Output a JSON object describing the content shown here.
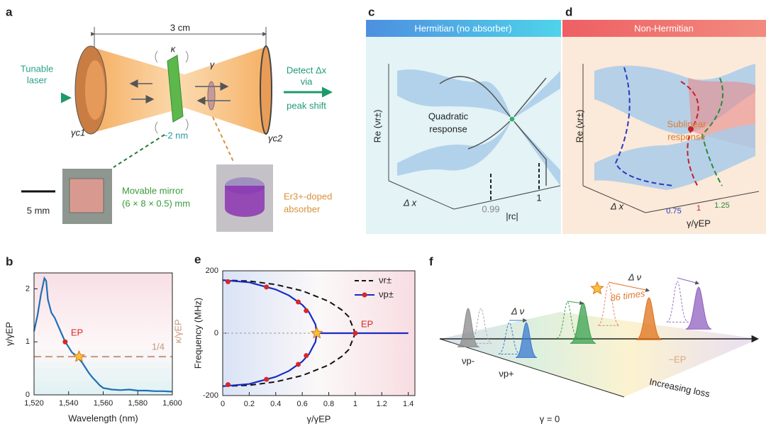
{
  "panels": {
    "a": {
      "letter": "a",
      "distance": "3 cm",
      "source": [
        "Tunable",
        "laser"
      ],
      "kappa": "κ",
      "gamma": "γ",
      "detect": [
        "Detect Δx",
        "via",
        "peak shift"
      ],
      "gamma_c1": "γc1",
      "gamma_c2": "γc2",
      "gap": "~2 nm",
      "scale": "5 mm",
      "mirror": [
        "Movable mirror",
        "(6 × 8 × 0.5) mm"
      ],
      "absorber": [
        "Er3+-doped",
        "absorber"
      ]
    },
    "c": {
      "letter": "c",
      "header": "Hermitian (no absorber)",
      "annotation": [
        "Quadratic",
        "response"
      ],
      "ylabel": "Re (νr±)",
      "axis_depth": "Δ x",
      "ticks": [
        "0.99",
        "1"
      ],
      "xlabel": "|rc|"
    },
    "d": {
      "letter": "d",
      "header": "Non-Hermitian",
      "annotation": [
        "Sublinear",
        "response"
      ],
      "ylabel": "Re (νr±)",
      "axis_depth": "Δ x",
      "ticks": [
        "0.75",
        "1",
        "1.25"
      ],
      "xlabel": "γ/γEP"
    },
    "f": {
      "letter": "f",
      "shift_small": "Δ ν",
      "shift_large": "Δ ν",
      "ratio": "86 times",
      "minus": "νp-",
      "plus": "νp+",
      "origin": "γ = 0",
      "axis": "Increasing loss",
      "ep": "~EP"
    }
  },
  "chart_data": [
    {
      "type": "line",
      "panel_label": "b",
      "xlabel": "Wavelength (nm)",
      "ylabel": "γ/γEP",
      "right_label": "κ/γEP",
      "xlim": [
        1520,
        1600
      ],
      "xticks": [
        {
          "value": 1520,
          "label": "1,520"
        },
        {
          "value": 1540,
          "label": "1,540"
        },
        {
          "value": 1560,
          "label": "1,560"
        },
        {
          "value": 1580,
          "label": "1,580"
        },
        {
          "value": 1600,
          "label": "1,600"
        }
      ],
      "ylim": [
        0,
        2.3
      ],
      "yticks": [
        0,
        1,
        2
      ],
      "series": [
        {
          "color": "#1f6fb5",
          "x": [
            1520,
            1522,
            1524,
            1526,
            1527,
            1528,
            1530,
            1532,
            1534,
            1536,
            1538,
            1540,
            1542,
            1544,
            1546,
            1548,
            1550,
            1552,
            1554,
            1556,
            1558,
            1560,
            1565,
            1570,
            1575,
            1580,
            1585,
            1590,
            1595,
            1600
          ],
          "values": [
            1.2,
            1.5,
            1.9,
            2.2,
            2.15,
            1.8,
            1.55,
            1.45,
            1.3,
            1.15,
            1.0,
            0.9,
            0.8,
            0.75,
            0.68,
            0.6,
            0.5,
            0.4,
            0.32,
            0.25,
            0.18,
            0.13,
            0.1,
            0.09,
            0.1,
            0.08,
            0.08,
            0.07,
            0.07,
            0.06
          ]
        }
      ],
      "reference_line": {
        "value": 0.72,
        "label": "1/4",
        "color": "#c8967a"
      },
      "ep_point": {
        "x": 1538,
        "y": 1.0,
        "label": "EP"
      },
      "star": {
        "x": 1546,
        "y": 0.72
      }
    },
    {
      "type": "line",
      "panel_label": "e",
      "xlabel": "γ/γEP",
      "ylabel": "Frequency (MHz)",
      "xlim": [
        0,
        1.45
      ],
      "xticks": [
        0,
        0.2,
        0.4,
        0.6,
        0.8,
        1,
        1.2,
        1.4
      ],
      "ylim": [
        -200,
        200
      ],
      "yticks": [
        -200,
        0,
        200
      ],
      "legend": "upper right",
      "series": [
        {
          "name": "νr±",
          "color": "#111111",
          "dash": true,
          "x": [
            0,
            0.2,
            0.4,
            0.6,
            0.8,
            0.9,
            0.95,
            1.0,
            null,
            0,
            0.2,
            0.4,
            0.6,
            0.8,
            0.9,
            0.95,
            1.0
          ],
          "values": [
            170,
            167,
            156,
            136,
            102,
            74,
            53,
            0,
            null,
            -170,
            -167,
            -156,
            -136,
            -102,
            -74,
            -53,
            0
          ]
        },
        {
          "name": "νp±",
          "color": "#1a2bc4",
          "x": [
            0,
            0.2,
            0.4,
            0.5,
            0.6,
            0.65,
            0.7,
            0.71,
            1.4,
            null,
            0,
            0.2,
            0.4,
            0.5,
            0.6,
            0.65,
            0.7,
            0.71
          ],
          "values": [
            170,
            163,
            140,
            121,
            91,
            68,
            28,
            0,
            0,
            null,
            -170,
            -163,
            -140,
            -121,
            -91,
            -68,
            -28,
            0
          ]
        }
      ],
      "points": {
        "color": "#d62828",
        "x": [
          0.04,
          0.33,
          0.57,
          0.63,
          0.04,
          0.33,
          0.57,
          0.63
        ],
        "values": [
          165,
          148,
          100,
          72,
          -165,
          -148,
          -100,
          -72
        ]
      },
      "zero_line": 0,
      "ep_point": {
        "x": 1.0,
        "y": 0,
        "label": "EP"
      },
      "star": {
        "x": 0.71,
        "y": 0
      }
    }
  ]
}
